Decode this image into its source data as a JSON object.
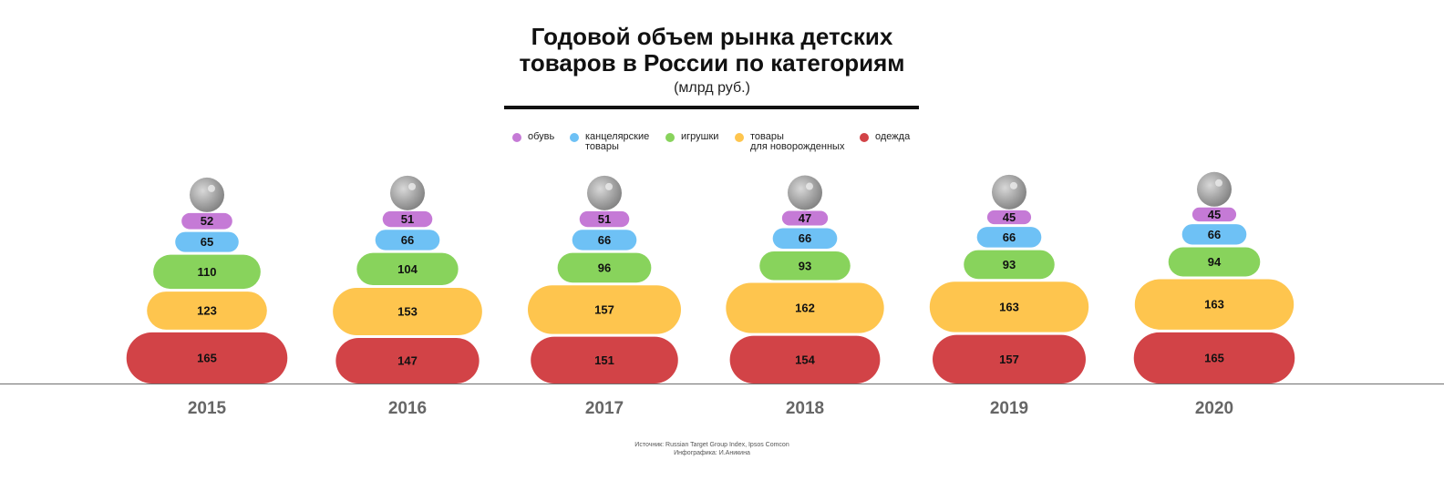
{
  "title_line1": "Годовой объем рынка детских",
  "title_line2": "товаров в России по категориям",
  "subtitle": "(млрд руб.)",
  "legend": [
    {
      "label": "обувь",
      "label2": "",
      "color": "#c57ad6"
    },
    {
      "label": "канцелярские",
      "label2": "товары",
      "color": "#6ec1f5"
    },
    {
      "label": "игрушки",
      "label2": "",
      "color": "#88d35c"
    },
    {
      "label": "товары",
      "label2": "для новорожденных",
      "color": "#fec54e"
    },
    {
      "label": "одежда",
      "label2": "",
      "color": "#d24347"
    }
  ],
  "source_line1": "Источник: Russian Target Group Index, Ipsos Comcon",
  "source_line2": "Инфографика: И.Аникина",
  "chart_data": {
    "type": "bar",
    "stacked": true,
    "categories": [
      "2015",
      "2016",
      "2017",
      "2018",
      "2019",
      "2020"
    ],
    "series": [
      {
        "name": "одежда",
        "color": "#d24347",
        "values": [
          165,
          147,
          151,
          154,
          157,
          165
        ]
      },
      {
        "name": "товары для новорожденных",
        "color": "#fec54e",
        "values": [
          123,
          153,
          157,
          162,
          163,
          163
        ]
      },
      {
        "name": "игрушки",
        "color": "#88d35c",
        "values": [
          110,
          104,
          96,
          93,
          93,
          94
        ]
      },
      {
        "name": "канцелярские товары",
        "color": "#6ec1f5",
        "values": [
          65,
          66,
          66,
          66,
          66,
          66
        ]
      },
      {
        "name": "обувь",
        "color": "#c57ad6",
        "values": [
          52,
          51,
          51,
          47,
          45,
          45
        ]
      }
    ],
    "legend_position": "top",
    "grid": false
  }
}
